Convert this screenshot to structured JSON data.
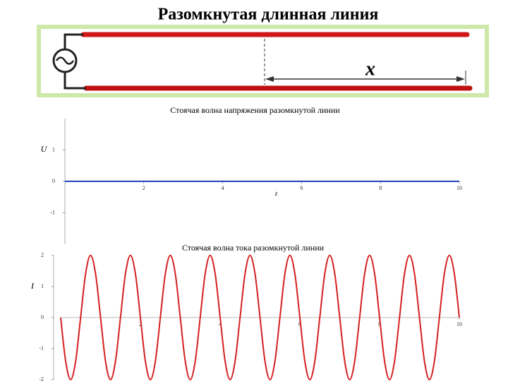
{
  "title": "Разомкнутая длинная линия",
  "diagram": {
    "label": "x"
  },
  "chart_data": [
    {
      "type": "line",
      "title": "Стоячая волна напряжения разомкнутой линии",
      "ylabel": "U",
      "xlabel": "z",
      "x": [
        0,
        10
      ],
      "series": [
        {
          "name": "U",
          "color": "#1f3fbf",
          "values": [
            0,
            0
          ]
        }
      ],
      "xlim": [
        0,
        10
      ],
      "xticks": [
        2,
        4,
        6,
        8,
        10
      ],
      "ylim": [
        -2,
        2
      ],
      "yticks": [
        -1,
        0,
        1
      ]
    },
    {
      "type": "line",
      "title": "Стоячая волна тока разомкнутой линии",
      "ylabel": "I",
      "x": [
        0,
        0.125,
        0.25,
        0.375,
        0.5,
        0.625,
        0.75,
        0.875,
        1,
        1.125,
        1.25,
        1.375,
        1.5,
        1.625,
        1.75,
        1.875,
        2,
        2.125,
        2.25,
        2.375,
        2.5,
        2.625,
        2.75,
        2.875,
        3,
        3.125,
        3.25,
        3.375,
        3.5,
        3.625,
        3.75,
        3.875,
        4,
        4.125,
        4.25,
        4.375,
        4.5,
        4.625,
        4.75,
        4.875,
        5,
        5.125,
        5.25,
        5.375,
        5.5,
        5.625,
        5.75,
        5.875,
        6,
        6.125,
        6.25,
        6.375,
        6.5,
        6.625,
        6.75,
        6.875,
        7,
        7.125,
        7.25,
        7.375,
        7.5,
        7.625,
        7.75,
        7.875,
        8,
        8.125,
        8.25,
        8.375,
        8.5,
        8.625,
        8.75,
        8.875,
        9,
        9.125,
        9.25,
        9.375,
        9.5,
        9.625,
        9.75,
        9.875,
        10
      ],
      "series": [
        {
          "name": "I",
          "color": "#d42020",
          "values": [
            0,
            -1.41,
            -2,
            -1.41,
            0,
            1.41,
            2,
            1.41,
            0,
            -1.41,
            -2,
            -1.41,
            0,
            1.41,
            2,
            1.41,
            0,
            -1.41,
            -2,
            -1.41,
            0,
            1.41,
            2,
            1.41,
            0,
            -1.41,
            -2,
            -1.41,
            0,
            1.41,
            2,
            1.41,
            0,
            -1.41,
            -2,
            -1.41,
            0,
            1.41,
            2,
            1.41,
            0,
            -1.41,
            -2,
            -1.41,
            0,
            1.41,
            2,
            1.41,
            0,
            -1.41,
            -2,
            -1.41,
            0,
            1.41,
            2,
            1.41,
            0,
            -1.41,
            -2,
            -1.41,
            0,
            1.41,
            2,
            1.41,
            0,
            -1.41,
            -2,
            -1.41,
            0,
            1.41,
            2,
            1.41,
            0,
            -1.41,
            -2,
            -1.41,
            0,
            1.41,
            2,
            1.41,
            0
          ]
        }
      ],
      "xlim": [
        0,
        10
      ],
      "xticks": [
        2,
        4,
        6,
        8,
        10
      ],
      "ylim": [
        -2,
        2
      ],
      "yticks": [
        -2,
        -1,
        0,
        1,
        2
      ]
    }
  ]
}
